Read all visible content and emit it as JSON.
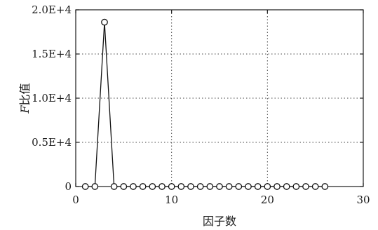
{
  "chart_data": {
    "type": "line",
    "xlabel": "因子数",
    "ylabel_var": "F",
    "ylabel_rest": "比值",
    "xlim": [
      0,
      30
    ],
    "ylim": [
      0,
      20000
    ],
    "xticks": [
      0,
      10,
      20,
      30
    ],
    "xtick_labels": [
      "0",
      "10",
      "20",
      "30"
    ],
    "yticks": [
      0,
      5000,
      10000,
      15000,
      20000
    ],
    "ytick_labels": [
      "0",
      "0.5E+4",
      "1.0E+4",
      "1.5E+4",
      "2.0E+4"
    ],
    "grid": true,
    "marker": "open-circle",
    "series": [
      {
        "x": [
          1,
          2,
          3,
          4,
          5,
          6,
          7,
          8,
          9,
          10,
          11,
          12,
          13,
          14,
          15,
          16,
          17,
          18,
          19,
          20,
          21,
          22,
          23,
          24,
          25,
          26
        ],
        "y": [
          0,
          0,
          18600,
          0,
          0,
          0,
          0,
          0,
          0,
          0,
          0,
          0,
          0,
          0,
          0,
          0,
          0,
          0,
          0,
          0,
          0,
          0,
          0,
          0,
          0,
          0
        ]
      }
    ]
  }
}
